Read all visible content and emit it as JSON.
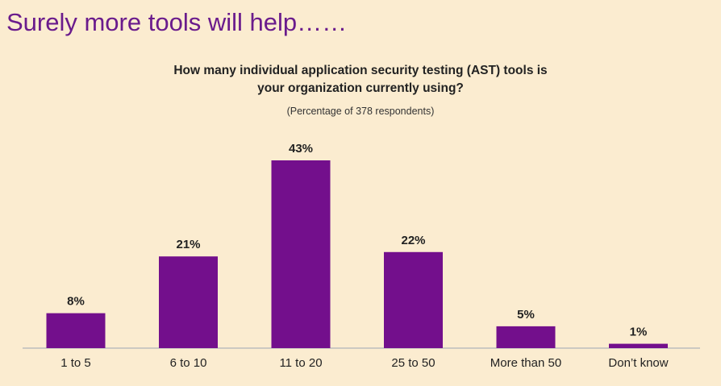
{
  "slide_title": "Surely more tools will help……",
  "chart_data": {
    "type": "bar",
    "title_lines": [
      "How many individual application security testing (AST) tools is",
      "your organization currently using?"
    ],
    "subtitle": "(Percentage of 378 respondents)",
    "categories": [
      "1 to 5",
      "6 to 10",
      "11 to 20",
      "25 to 50",
      "More than 50",
      "Don’t know"
    ],
    "values": [
      8,
      21,
      43,
      22,
      5,
      1
    ],
    "value_labels": [
      "8%",
      "21%",
      "43%",
      "22%",
      "5%",
      "1%"
    ],
    "unit": "%",
    "ylim": [
      0,
      43
    ],
    "grid": false,
    "bar_color": "#730f8c",
    "axis_color": "#bdbdbd"
  },
  "colors": {
    "background": "#fbecd0",
    "title": "#6a1b8c"
  }
}
